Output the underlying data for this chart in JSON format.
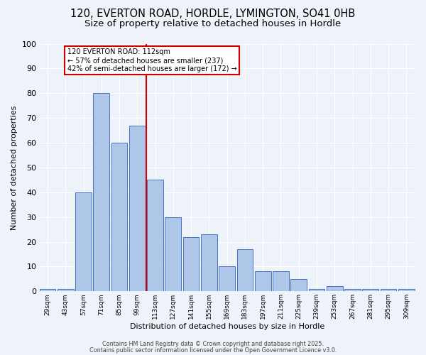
{
  "title1": "120, EVERTON ROAD, HORDLE, LYMINGTON, SO41 0HB",
  "title2": "Size of property relative to detached houses in Hordle",
  "xlabel": "Distribution of detached houses by size in Hordle",
  "ylabel": "Number of detached properties",
  "categories": [
    "29sqm",
    "43sqm",
    "57sqm",
    "71sqm",
    "85sqm",
    "99sqm",
    "113sqm",
    "127sqm",
    "141sqm",
    "155sqm",
    "169sqm",
    "183sqm",
    "197sqm",
    "211sqm",
    "225sqm",
    "239sqm",
    "253sqm",
    "267sqm",
    "281sqm",
    "295sqm",
    "309sqm"
  ],
  "values": [
    1,
    1,
    40,
    80,
    60,
    67,
    45,
    30,
    22,
    23,
    10,
    17,
    8,
    8,
    5,
    1,
    2,
    1,
    1,
    1,
    1
  ],
  "bar_color": "#aec6e8",
  "bar_edge_color": "#4472c4",
  "vline_x_index": 6,
  "vline_color": "#cc0000",
  "annotation_title": "120 EVERTON ROAD: 112sqm",
  "annotation_line1": "← 57% of detached houses are smaller (237)",
  "annotation_line2": "42% of semi-detached houses are larger (172) →",
  "annotation_box_color": "#ffffff",
  "annotation_box_edge_color": "#cc0000",
  "ylim": [
    0,
    100
  ],
  "yticks": [
    0,
    10,
    20,
    30,
    40,
    50,
    60,
    70,
    80,
    90,
    100
  ],
  "footer1": "Contains HM Land Registry data © Crown copyright and database right 2025.",
  "footer2": "Contains public sector information licensed under the Open Government Licence v3.0.",
  "bg_color": "#eef2f9",
  "title_fontsize": 10.5,
  "subtitle_fontsize": 9.5
}
